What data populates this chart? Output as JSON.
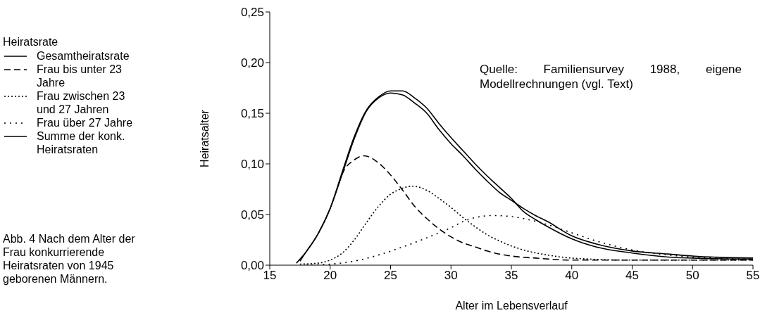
{
  "chart_data": {
    "type": "line",
    "xlabel": "Alter im Lebensverlauf",
    "ylabel": "Heiratsalter",
    "legend_title": "Heiratsrate",
    "legend": "left",
    "grid": false,
    "marker": "none",
    "xlim": [
      15,
      55
    ],
    "xticks": [
      15,
      20,
      25,
      30,
      35,
      40,
      45,
      50,
      55
    ],
    "ylim": [
      0,
      0.25
    ],
    "yticks": [
      {
        "value": 0,
        "label": "0,00"
      },
      {
        "value": 0.05,
        "label": "0,05"
      },
      {
        "value": 0.1,
        "label": "0,10"
      },
      {
        "value": 0.15,
        "label": "0,15"
      },
      {
        "value": 0.2,
        "label": "0,20"
      },
      {
        "value": 0.25,
        "label": "0,25"
      }
    ],
    "annotations": [
      "Quelle: Familiensurvey 1988, eigene Modellrechnungen (vgl. Text)",
      "Abb. 4 Nach dem Alter der Frau konkurrierende Heiratsraten von 1945 geborenen Männern."
    ],
    "series": [
      {
        "name": "Gesamtheiratsrate",
        "color": "#000000",
        "line_style": "solid",
        "x": [
          17.2,
          18,
          19,
          20,
          21,
          22,
          23,
          24,
          25,
          26,
          27,
          28,
          29,
          30,
          31,
          32,
          33,
          34,
          35,
          36,
          37,
          38,
          40,
          42,
          45,
          48,
          50,
          55
        ],
        "values": [
          0.002,
          0.013,
          0.031,
          0.056,
          0.092,
          0.127,
          0.153,
          0.166,
          0.172,
          0.172,
          0.165,
          0.155,
          0.14,
          0.126,
          0.113,
          0.1,
          0.088,
          0.077,
          0.066,
          0.053,
          0.045,
          0.038,
          0.026,
          0.018,
          0.012,
          0.008,
          0.007,
          0.006
        ]
      },
      {
        "name": "Frau bis unter 23 Jahre",
        "color": "#000000",
        "line_style": "dashed",
        "x": [
          20.7,
          21,
          22,
          22.8,
          24,
          25,
          26,
          27,
          28,
          29,
          30,
          31,
          32,
          33,
          34,
          35,
          37,
          40,
          45,
          50,
          55
        ],
        "values": [
          0.08,
          0.09,
          0.104,
          0.108,
          0.101,
          0.089,
          0.074,
          0.058,
          0.046,
          0.036,
          0.028,
          0.022,
          0.018,
          0.014,
          0.011,
          0.009,
          0.007,
          0.005,
          0.005,
          0.005,
          0.005
        ]
      },
      {
        "name": "Frau zwischen 23 und 27 Jahren",
        "color": "#000000",
        "line_style": "dotted",
        "x": [
          17.5,
          19,
          20,
          21,
          22,
          23,
          24,
          25,
          26,
          26.8,
          28,
          29,
          30,
          31,
          32,
          33,
          34,
          35,
          36,
          38,
          40,
          45,
          55
        ],
        "values": [
          0.001,
          0.002,
          0.005,
          0.012,
          0.025,
          0.042,
          0.058,
          0.07,
          0.076,
          0.078,
          0.074,
          0.066,
          0.057,
          0.047,
          0.038,
          0.03,
          0.024,
          0.019,
          0.015,
          0.01,
          0.007,
          0.005,
          0.005
        ]
      },
      {
        "name": "Frau über 27 Jahre",
        "color": "#000000",
        "line_style": "dotted",
        "x": [
          18,
          20,
          22,
          24,
          26,
          28,
          30,
          31,
          32,
          33.5,
          35,
          36,
          38,
          40,
          42,
          45,
          48,
          50,
          55
        ],
        "values": [
          0.0,
          0.001,
          0.004,
          0.01,
          0.018,
          0.027,
          0.037,
          0.043,
          0.047,
          0.049,
          0.048,
          0.046,
          0.04,
          0.032,
          0.024,
          0.015,
          0.01,
          0.008,
          0.006
        ]
      },
      {
        "name": "Summe der konk. Heiratsraten",
        "color": "#000000",
        "line_style": "solid",
        "x": [
          17.5,
          18,
          19,
          20,
          21,
          22,
          23,
          24,
          25,
          26,
          27,
          28,
          29,
          30,
          31,
          32,
          33,
          34,
          35,
          36,
          37,
          38,
          40,
          42,
          45,
          48,
          50,
          55
        ],
        "values": [
          0.004,
          0.013,
          0.031,
          0.056,
          0.09,
          0.125,
          0.152,
          0.165,
          0.17,
          0.168,
          0.16,
          0.15,
          0.134,
          0.12,
          0.108,
          0.095,
          0.083,
          0.072,
          0.064,
          0.056,
          0.049,
          0.043,
          0.029,
          0.021,
          0.014,
          0.011,
          0.009,
          0.007
        ]
      }
    ]
  }
}
